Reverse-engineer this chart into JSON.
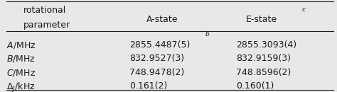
{
  "col0_header_line1": "rotational",
  "col0_header_line2": "parameter",
  "col1_header": "A-state",
  "col2_header": "E-state",
  "col2_header_superscript": "c",
  "rows": [
    {
      "param": "A/MHz",
      "a_state": "2855.4487(5)",
      "a_state_superscript": "b",
      "e_state": "2855.3093(4)"
    },
    {
      "param": "B/MHz",
      "a_state": "832.9527(3)",
      "a_state_superscript": "",
      "e_state": "832.9159(3)"
    },
    {
      "param": "C/MHz",
      "a_state": "748.9478(2)",
      "a_state_superscript": "",
      "e_state": "748.8596(2)"
    },
    {
      "param": "Delta_J/kHz",
      "a_state": "0.161(2)",
      "a_state_superscript": "",
      "e_state": "0.160(1)"
    }
  ],
  "bg_color": "#e8e8e8",
  "text_color": "#1a1a1a",
  "font_size": 9.0
}
